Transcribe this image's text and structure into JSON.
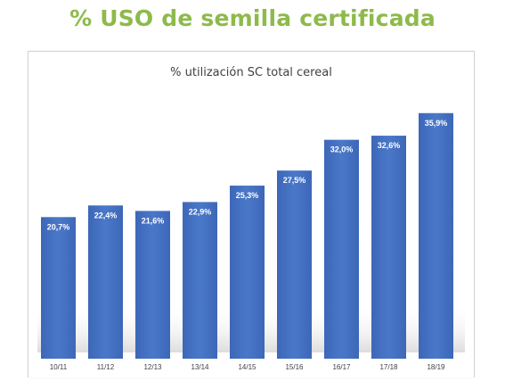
{
  "page": {
    "title": "% USO de semilla certificada"
  },
  "colors": {
    "title": "#8dba4b",
    "bar": "#4472c4",
    "bar_dark": "#3a62ae"
  },
  "chart_data": {
    "type": "bar",
    "title": "% utilización SC total cereal",
    "xlabel": "",
    "ylabel": "",
    "categories": [
      "10/11",
      "11/12",
      "12/13",
      "13/14",
      "14/15",
      "15/16",
      "16/17",
      "17/18",
      "18/19"
    ],
    "values": [
      20.7,
      22.4,
      21.6,
      22.9,
      25.3,
      27.5,
      32.0,
      32.6,
      35.9
    ],
    "data_labels": [
      "20,7%",
      "22,4%",
      "21,6%",
      "22,9%",
      "25,3%",
      "27,5%",
      "32,0%",
      "32,6%",
      "35,9%"
    ],
    "ylim": [
      0,
      36
    ],
    "grid": false,
    "legend": "none"
  }
}
